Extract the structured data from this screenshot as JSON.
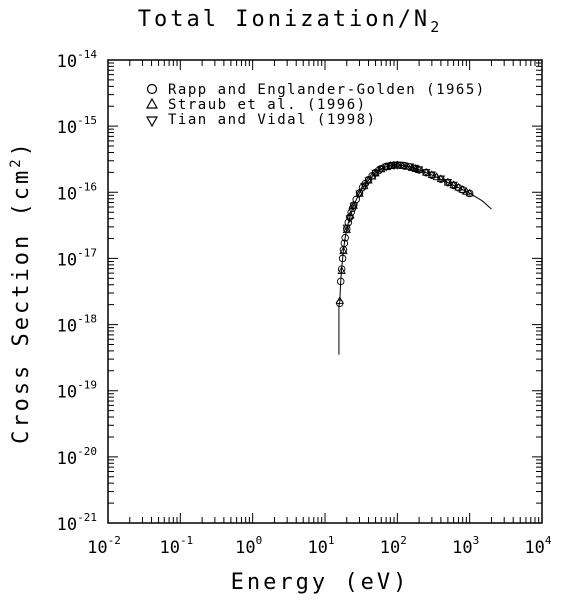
{
  "chart_data": {
    "type": "scatter",
    "title": "Total Ionization/N",
    "title_subscript": "2",
    "xlabel": "Energy (eV)",
    "ylabel": "Cross Section (cm",
    "ylabel_sup": "2",
    "ylabel_close": ")",
    "x_scale": "log",
    "y_scale": "log",
    "xlim": [
      0.01,
      10000
    ],
    "ylim": [
      1e-21,
      1e-14
    ],
    "x_ticks": [
      {
        "value": 0.01,
        "base": "10",
        "exp": "-2"
      },
      {
        "value": 0.1,
        "base": "10",
        "exp": "-1"
      },
      {
        "value": 1,
        "base": "10",
        "exp": "0"
      },
      {
        "value": 10,
        "base": "10",
        "exp": "1"
      },
      {
        "value": 100,
        "base": "10",
        "exp": "2"
      },
      {
        "value": 1000,
        "base": "10",
        "exp": "3"
      },
      {
        "value": 10000,
        "base": "10",
        "exp": "4"
      }
    ],
    "y_ticks": [
      {
        "value": 1e-21,
        "base": "10",
        "exp": "-21"
      },
      {
        "value": 1e-20,
        "base": "10",
        "exp": "-20"
      },
      {
        "value": 1e-19,
        "base": "10",
        "exp": "-19"
      },
      {
        "value": 1e-18,
        "base": "10",
        "exp": "-18"
      },
      {
        "value": 1e-17,
        "base": "10",
        "exp": "-17"
      },
      {
        "value": 1e-16,
        "base": "10",
        "exp": "-16"
      },
      {
        "value": 1e-15,
        "base": "10",
        "exp": "-15"
      },
      {
        "value": 1e-14,
        "base": "10",
        "exp": "-14"
      }
    ],
    "legend_position": "top-left",
    "series": [
      {
        "name": "Rapp and Englander-Golden (1965)",
        "marker": "circle",
        "x": [
          16,
          16.5,
          17,
          17.5,
          18,
          18.5,
          19,
          20,
          21,
          22,
          23,
          24,
          25,
          27,
          30,
          33,
          36,
          40,
          45,
          50,
          55,
          60,
          70,
          80,
          90,
          100,
          110,
          125,
          150,
          175,
          200,
          250,
          300,
          400,
          500,
          600,
          700,
          800,
          1000
        ],
        "y": [
          2.1e-18,
          4.5e-18,
          6.9e-18,
          1e-17,
          1.35e-17,
          1.7e-17,
          2.05e-17,
          2.8e-17,
          3.5e-17,
          4.2e-17,
          5e-17,
          5.7e-17,
          6.4e-17,
          7.8e-17,
          9.8e-17,
          1.18e-16,
          1.35e-16,
          1.55e-16,
          1.78e-16,
          1.98e-16,
          2.13e-16,
          2.28e-16,
          2.45e-16,
          2.54e-16,
          2.57e-16,
          2.58e-16,
          2.56e-16,
          2.52e-16,
          2.42e-16,
          2.3e-16,
          2.18e-16,
          1.98e-16,
          1.82e-16,
          1.58e-16,
          1.4e-16,
          1.27e-16,
          1.17e-16,
          1.09e-16,
          9.6e-17
        ]
      },
      {
        "name": "Straub et al. (1996)",
        "marker": "triangle-up",
        "x": [
          16,
          17,
          18,
          20,
          22.5,
          25,
          30,
          35,
          40,
          45,
          50,
          60,
          70,
          80,
          90,
          100,
          120,
          140,
          160,
          180,
          200,
          250,
          300,
          350,
          400,
          500,
          600,
          700,
          800,
          900,
          1000
        ],
        "y": [
          2.3e-18,
          6.5e-18,
          1.3e-17,
          2.7e-17,
          4.5e-17,
          6.3e-17,
          9.6e-17,
          1.25e-16,
          1.52e-16,
          1.75e-16,
          1.95e-16,
          2.25e-16,
          2.42e-16,
          2.52e-16,
          2.56e-16,
          2.57e-16,
          2.53e-16,
          2.45e-16,
          2.36e-16,
          2.27e-16,
          2.19e-16,
          2e-16,
          1.84e-16,
          1.71e-16,
          1.6e-16,
          1.42e-16,
          1.29e-16,
          1.19e-16,
          1.1e-16,
          1.03e-16,
          9.7e-17
        ]
      },
      {
        "name": "Tian and Vidal (1998)",
        "marker": "triangle-down",
        "x": [
          20,
          22,
          25,
          30,
          35,
          40,
          50,
          60,
          70,
          80,
          90,
          100,
          120,
          150,
          175,
          200,
          250,
          300,
          400,
          500,
          600
        ],
        "y": [
          2.9e-17,
          4e-17,
          6.2e-17,
          9.5e-17,
          1.24e-16,
          1.5e-16,
          1.93e-16,
          2.23e-16,
          2.41e-16,
          2.5e-16,
          2.55e-16,
          2.57e-16,
          2.54e-16,
          2.43e-16,
          2.32e-16,
          2.2e-16,
          2e-16,
          1.84e-16,
          1.6e-16,
          1.42e-16,
          1.29e-16
        ]
      }
    ],
    "fit_curve": {
      "x": [
        15.58,
        15.58,
        15.65,
        15.8,
        16,
        16.5,
        17,
        18,
        19,
        20,
        22,
        25,
        30,
        35,
        40,
        50,
        60,
        70,
        80,
        90,
        100,
        120,
        150,
        200,
        300,
        500,
        700,
        1000,
        1500,
        2000
      ],
      "y": [
        3.5e-19,
        1.8e-18,
        2e-18,
        2.05e-18,
        2.2e-18,
        4.5e-18,
        7e-18,
        1.35e-17,
        2.05e-17,
        2.8e-17,
        4.2e-17,
        6.4e-17,
        9.8e-17,
        1.26e-16,
        1.52e-16,
        1.96e-16,
        2.26e-16,
        2.43e-16,
        2.53e-16,
        2.57e-16,
        2.58e-16,
        2.54e-16,
        2.43e-16,
        2.19e-16,
        1.83e-16,
        1.4e-16,
        1.18e-16,
        9.7e-17,
        7.4e-17,
        5.6e-17
      ]
    }
  }
}
